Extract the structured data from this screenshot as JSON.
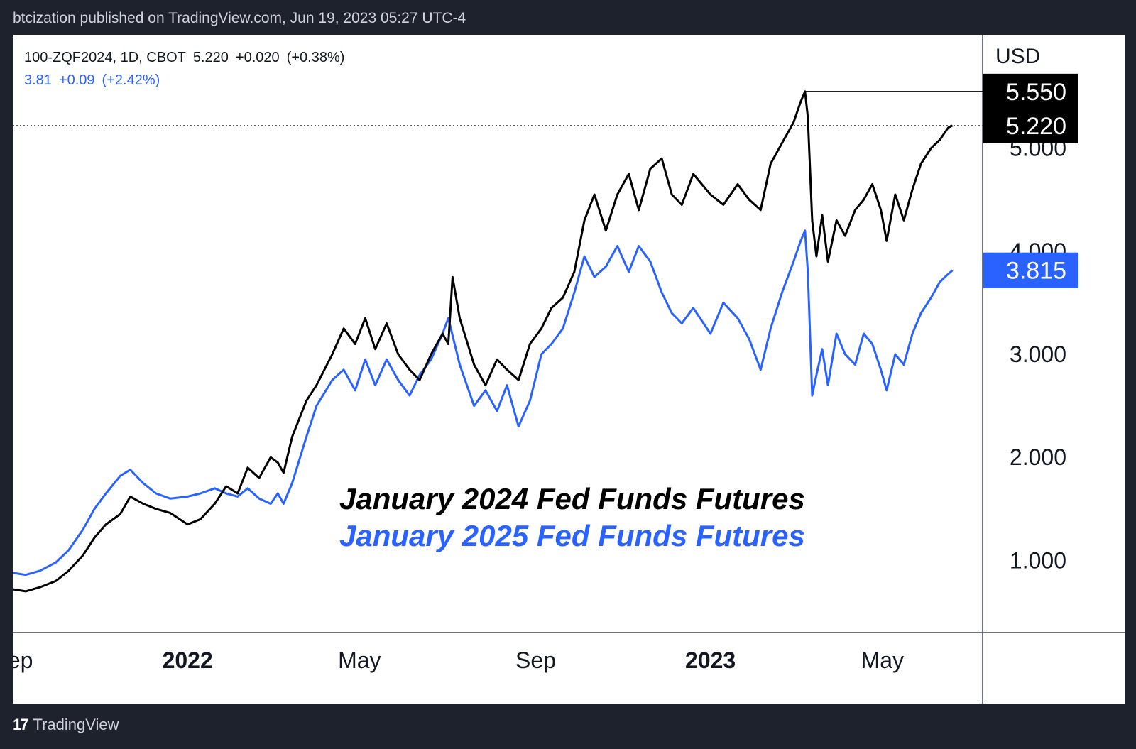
{
  "header": {
    "text": "btcization published on TradingView.com, Jun 19, 2023 05:27 UTC-4"
  },
  "legend": {
    "symbol_line": {
      "symbol": "100-ZQF2024, 1D, CBOT",
      "last": "5.220",
      "change": "+0.020",
      "change_pct": "(+0.38%)"
    },
    "compare_line": {
      "last": "3.81",
      "change": "+0.09",
      "change_pct": "(+2.42%)"
    }
  },
  "annotation": {
    "line1": "January 2024 Fed Funds Futures",
    "line2": "January 2025 Fed Funds Futures"
  },
  "footer": {
    "logo": "17",
    "brand": "TradingView"
  },
  "colors": {
    "series_2024": "#000000",
    "series_2025": "#2962ff",
    "background": "#ffffff",
    "frame": "#1e222d"
  },
  "chart_data": {
    "type": "line",
    "x_tick_labels": [
      "Sep",
      "2022",
      "May",
      "Sep",
      "2023",
      "May"
    ],
    "x_ticks": [
      "2021-09-01",
      "2022-01-01",
      "2022-05-01",
      "2022-09-01",
      "2023-01-01",
      "2023-05-01"
    ],
    "xlim": [
      "2021-09-01",
      "2023-07-10"
    ],
    "ylabel": "USD",
    "y_tick_labels": [
      "1.000",
      "2.000",
      "3.000",
      "4.000",
      "5.000"
    ],
    "ylim": [
      0.3,
      6.1
    ],
    "grid": false,
    "price_labels": [
      {
        "value": 5.55,
        "text": "5.550",
        "series": 0
      },
      {
        "value": 5.22,
        "text": "5.220",
        "series": 0
      },
      {
        "value": 3.815,
        "text": "3.815",
        "series": 1
      }
    ],
    "reference_lines": [
      {
        "value": 5.55,
        "style": "solid",
        "from": "2023-03-08"
      },
      {
        "value": 5.22,
        "style": "dotted"
      }
    ],
    "series": [
      {
        "points": [
          [
            "2021-09-01",
            0.72
          ],
          [
            "2021-09-10",
            0.7
          ],
          [
            "2021-09-20",
            0.74
          ],
          [
            "2021-10-01",
            0.8
          ],
          [
            "2021-10-10",
            0.9
          ],
          [
            "2021-10-20",
            1.05
          ],
          [
            "2021-10-28",
            1.22
          ],
          [
            "2021-11-05",
            1.35
          ],
          [
            "2021-11-15",
            1.45
          ],
          [
            "2021-11-22",
            1.62
          ],
          [
            "2021-12-01",
            1.55
          ],
          [
            "2021-12-10",
            1.5
          ],
          [
            "2021-12-20",
            1.46
          ],
          [
            "2022-01-01",
            1.35
          ],
          [
            "2022-01-10",
            1.4
          ],
          [
            "2022-01-20",
            1.55
          ],
          [
            "2022-01-28",
            1.72
          ],
          [
            "2022-02-05",
            1.65
          ],
          [
            "2022-02-12",
            1.9
          ],
          [
            "2022-02-20",
            1.8
          ],
          [
            "2022-02-28",
            2.0
          ],
          [
            "2022-03-05",
            1.95
          ],
          [
            "2022-03-09",
            1.85
          ],
          [
            "2022-03-15",
            2.2
          ],
          [
            "2022-03-25",
            2.55
          ],
          [
            "2022-04-01",
            2.7
          ],
          [
            "2022-04-12",
            3.0
          ],
          [
            "2022-04-20",
            3.25
          ],
          [
            "2022-04-28",
            3.1
          ],
          [
            "2022-05-05",
            3.35
          ],
          [
            "2022-05-12",
            3.05
          ],
          [
            "2022-05-20",
            3.3
          ],
          [
            "2022-05-28",
            3.0
          ],
          [
            "2022-06-05",
            2.85
          ],
          [
            "2022-06-12",
            2.75
          ],
          [
            "2022-06-20",
            3.0
          ],
          [
            "2022-06-28",
            3.2
          ],
          [
            "2022-07-02",
            3.1
          ],
          [
            "2022-07-05",
            3.75
          ],
          [
            "2022-07-10",
            3.35
          ],
          [
            "2022-07-20",
            2.9
          ],
          [
            "2022-07-28",
            2.7
          ],
          [
            "2022-08-05",
            2.95
          ],
          [
            "2022-08-12",
            2.85
          ],
          [
            "2022-08-20",
            2.75
          ],
          [
            "2022-08-28",
            3.1
          ],
          [
            "2022-09-05",
            3.25
          ],
          [
            "2022-09-12",
            3.45
          ],
          [
            "2022-09-20",
            3.55
          ],
          [
            "2022-09-28",
            3.8
          ],
          [
            "2022-10-05",
            4.3
          ],
          [
            "2022-10-12",
            4.55
          ],
          [
            "2022-10-20",
            4.2
          ],
          [
            "2022-10-28",
            4.55
          ],
          [
            "2022-11-05",
            4.75
          ],
          [
            "2022-11-12",
            4.4
          ],
          [
            "2022-11-20",
            4.8
          ],
          [
            "2022-11-28",
            4.9
          ],
          [
            "2022-12-05",
            4.55
          ],
          [
            "2022-12-12",
            4.45
          ],
          [
            "2022-12-20",
            4.75
          ],
          [
            "2023-01-01",
            4.55
          ],
          [
            "2023-01-10",
            4.45
          ],
          [
            "2023-01-20",
            4.65
          ],
          [
            "2023-01-28",
            4.5
          ],
          [
            "2023-02-05",
            4.4
          ],
          [
            "2023-02-12",
            4.85
          ],
          [
            "2023-02-20",
            5.05
          ],
          [
            "2023-02-28",
            5.25
          ],
          [
            "2023-03-05",
            5.45
          ],
          [
            "2023-03-08",
            5.55
          ],
          [
            "2023-03-10",
            5.3
          ],
          [
            "2023-03-13",
            4.3
          ],
          [
            "2023-03-16",
            3.95
          ],
          [
            "2023-03-20",
            4.35
          ],
          [
            "2023-03-24",
            3.9
          ],
          [
            "2023-03-30",
            4.3
          ],
          [
            "2023-04-05",
            4.15
          ],
          [
            "2023-04-12",
            4.4
          ],
          [
            "2023-04-18",
            4.5
          ],
          [
            "2023-04-24",
            4.65
          ],
          [
            "2023-04-30",
            4.4
          ],
          [
            "2023-05-04",
            4.1
          ],
          [
            "2023-05-10",
            4.55
          ],
          [
            "2023-05-16",
            4.3
          ],
          [
            "2023-05-22",
            4.6
          ],
          [
            "2023-05-28",
            4.85
          ],
          [
            "2023-06-04",
            5.0
          ],
          [
            "2023-06-10",
            5.08
          ],
          [
            "2023-06-16",
            5.2
          ],
          [
            "2023-06-19",
            5.22
          ]
        ]
      },
      {
        "points": [
          [
            "2021-09-01",
            0.88
          ],
          [
            "2021-09-10",
            0.86
          ],
          [
            "2021-09-20",
            0.9
          ],
          [
            "2021-10-01",
            0.98
          ],
          [
            "2021-10-10",
            1.1
          ],
          [
            "2021-10-20",
            1.3
          ],
          [
            "2021-10-28",
            1.5
          ],
          [
            "2021-11-05",
            1.65
          ],
          [
            "2021-11-15",
            1.82
          ],
          [
            "2021-11-22",
            1.88
          ],
          [
            "2021-12-01",
            1.75
          ],
          [
            "2021-12-10",
            1.65
          ],
          [
            "2021-12-20",
            1.6
          ],
          [
            "2022-01-01",
            1.62
          ],
          [
            "2022-01-10",
            1.65
          ],
          [
            "2022-01-20",
            1.7
          ],
          [
            "2022-01-28",
            1.65
          ],
          [
            "2022-02-05",
            1.62
          ],
          [
            "2022-02-12",
            1.7
          ],
          [
            "2022-02-20",
            1.6
          ],
          [
            "2022-02-28",
            1.55
          ],
          [
            "2022-03-05",
            1.65
          ],
          [
            "2022-03-09",
            1.55
          ],
          [
            "2022-03-15",
            1.75
          ],
          [
            "2022-03-25",
            2.2
          ],
          [
            "2022-04-01",
            2.5
          ],
          [
            "2022-04-12",
            2.75
          ],
          [
            "2022-04-20",
            2.85
          ],
          [
            "2022-04-28",
            2.65
          ],
          [
            "2022-05-05",
            2.95
          ],
          [
            "2022-05-12",
            2.7
          ],
          [
            "2022-05-20",
            2.95
          ],
          [
            "2022-05-28",
            2.75
          ],
          [
            "2022-06-05",
            2.6
          ],
          [
            "2022-06-12",
            2.8
          ],
          [
            "2022-06-20",
            2.95
          ],
          [
            "2022-06-28",
            3.2
          ],
          [
            "2022-07-02",
            3.35
          ],
          [
            "2022-07-10",
            2.9
          ],
          [
            "2022-07-20",
            2.5
          ],
          [
            "2022-07-28",
            2.65
          ],
          [
            "2022-08-05",
            2.45
          ],
          [
            "2022-08-12",
            2.7
          ],
          [
            "2022-08-20",
            2.3
          ],
          [
            "2022-08-28",
            2.55
          ],
          [
            "2022-09-05",
            3.0
          ],
          [
            "2022-09-12",
            3.1
          ],
          [
            "2022-09-20",
            3.25
          ],
          [
            "2022-09-28",
            3.6
          ],
          [
            "2022-10-05",
            3.95
          ],
          [
            "2022-10-12",
            3.75
          ],
          [
            "2022-10-20",
            3.85
          ],
          [
            "2022-10-28",
            4.05
          ],
          [
            "2022-11-05",
            3.8
          ],
          [
            "2022-11-12",
            4.05
          ],
          [
            "2022-11-20",
            3.9
          ],
          [
            "2022-11-28",
            3.6
          ],
          [
            "2022-12-05",
            3.4
          ],
          [
            "2022-12-12",
            3.3
          ],
          [
            "2022-12-20",
            3.45
          ],
          [
            "2023-01-01",
            3.2
          ],
          [
            "2023-01-10",
            3.5
          ],
          [
            "2023-01-20",
            3.35
          ],
          [
            "2023-01-28",
            3.15
          ],
          [
            "2023-02-05",
            2.85
          ],
          [
            "2023-02-12",
            3.25
          ],
          [
            "2023-02-20",
            3.6
          ],
          [
            "2023-02-28",
            3.9
          ],
          [
            "2023-03-05",
            4.1
          ],
          [
            "2023-03-08",
            4.2
          ],
          [
            "2023-03-10",
            3.8
          ],
          [
            "2023-03-13",
            2.6
          ],
          [
            "2023-03-16",
            2.8
          ],
          [
            "2023-03-20",
            3.05
          ],
          [
            "2023-03-24",
            2.7
          ],
          [
            "2023-03-30",
            3.2
          ],
          [
            "2023-04-05",
            3.0
          ],
          [
            "2023-04-12",
            2.9
          ],
          [
            "2023-04-18",
            3.2
          ],
          [
            "2023-04-24",
            3.1
          ],
          [
            "2023-04-30",
            2.85
          ],
          [
            "2023-05-04",
            2.65
          ],
          [
            "2023-05-10",
            3.0
          ],
          [
            "2023-05-16",
            2.9
          ],
          [
            "2023-05-22",
            3.2
          ],
          [
            "2023-05-28",
            3.4
          ],
          [
            "2023-06-04",
            3.55
          ],
          [
            "2023-06-10",
            3.7
          ],
          [
            "2023-06-16",
            3.78
          ],
          [
            "2023-06-19",
            3.815
          ]
        ]
      }
    ]
  }
}
